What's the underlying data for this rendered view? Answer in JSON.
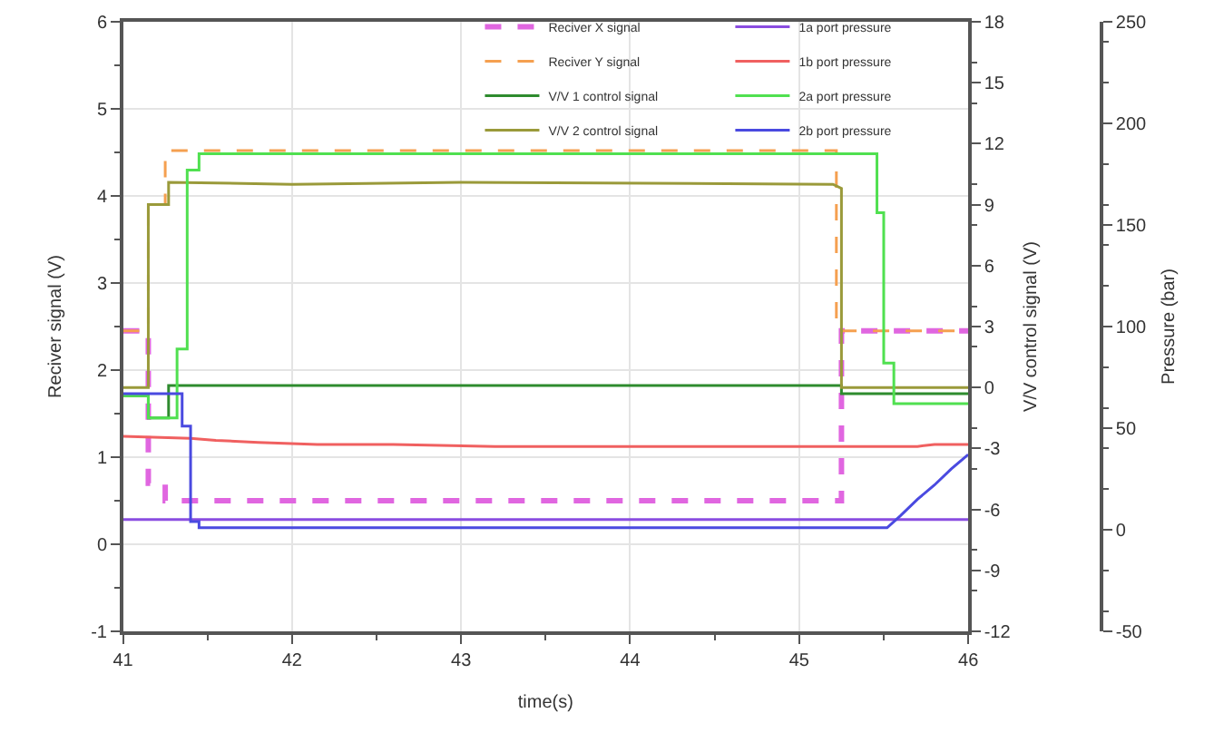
{
  "chart_data": {
    "type": "line",
    "xlabel": "time(s)",
    "ylabel": "Reciver signal (V)",
    "y2label": "V/V control signal (V)",
    "y3label": "Pressure (bar)",
    "xlim": [
      41,
      46
    ],
    "xticks": [
      41,
      42,
      43,
      44,
      45,
      46
    ],
    "ylim": [
      -1,
      6
    ],
    "yticks": [
      -1,
      0,
      1,
      2,
      3,
      4,
      5,
      6
    ],
    "y2lim": [
      -12,
      18
    ],
    "y2ticks": [
      -12,
      -9,
      -6,
      -3,
      0,
      3,
      6,
      9,
      12,
      15,
      18
    ],
    "y3lim": [
      -50,
      250
    ],
    "y3ticks": [
      -50,
      0,
      50,
      100,
      150,
      200,
      250
    ],
    "grid": true,
    "legend": "top",
    "marker": "none",
    "series": [
      {
        "name": "Reciver X signal",
        "color": "#e066e0",
        "line_style": "dashed",
        "x": [
          41,
          41.15,
          41.15,
          41.25,
          41.25,
          45.25,
          45.25,
          46
        ],
        "values": [
          2.45,
          2.45,
          0.7,
          0.7,
          0.5,
          0.5,
          2.45,
          2.45
        ]
      },
      {
        "name": "Reciver Y signal",
        "color": "#f5a050",
        "line_style": "dashed",
        "x": [
          41,
          41.15,
          41.15,
          41.25,
          41.25,
          45.22,
          45.22,
          46
        ],
        "values": [
          2.45,
          2.45,
          3.9,
          3.9,
          4.52,
          4.52,
          2.45,
          2.45
        ]
      },
      {
        "name": "V/V 1 control signal",
        "color": "#2e8b2e",
        "axis": "y2",
        "x": [
          41,
          41.15,
          41.15,
          41.27,
          41.27,
          45.25,
          45.25,
          46
        ],
        "values": [
          -0.4,
          -0.4,
          -1.5,
          -1.5,
          0.1,
          0.1,
          -0.3,
          -0.3
        ]
      },
      {
        "name": "V/V 2 control signal",
        "color": "#9a9a3a",
        "axis": "y2",
        "x": [
          41,
          41.15,
          41.15,
          41.27,
          41.27,
          42,
          43,
          45.2,
          45.25,
          45.25,
          46
        ],
        "values": [
          0,
          0,
          9,
          9,
          10.1,
          10,
          10.1,
          10,
          9.8,
          0,
          0
        ]
      },
      {
        "name": "1a port pressure",
        "color": "#8a4de0",
        "axis": "y3",
        "x": [
          41,
          46
        ],
        "values": [
          5,
          5
        ]
      },
      {
        "name": "1b port pressure",
        "color": "#f06060",
        "axis": "y3",
        "x": [
          41,
          41.4,
          41.55,
          41.8,
          42.15,
          42.6,
          43.2,
          45.7,
          45.8,
          46
        ],
        "values": [
          46,
          45,
          44,
          43,
          42,
          42,
          41,
          41,
          42,
          42
        ]
      },
      {
        "name": "2a port pressure",
        "color": "#50e050",
        "axis": "y3",
        "x": [
          41,
          41.15,
          41.15,
          41.32,
          41.32,
          41.38,
          41.38,
          41.45,
          41.45,
          45.46,
          45.46,
          45.5,
          45.5,
          45.56,
          45.56,
          46
        ],
        "values": [
          66,
          66,
          55,
          55,
          89,
          89,
          177,
          177,
          185,
          185,
          156,
          156,
          82,
          82,
          62,
          62
        ]
      },
      {
        "name": "2b port pressure",
        "color": "#4a4ae0",
        "axis": "y3",
        "x": [
          41,
          41.35,
          41.35,
          41.4,
          41.4,
          41.45,
          41.45,
          45.52,
          45.6,
          45.7,
          45.8,
          45.9,
          46
        ],
        "values": [
          67,
          67,
          51,
          51,
          4,
          4,
          1,
          1,
          7,
          15,
          22,
          30,
          37
        ]
      }
    ]
  }
}
